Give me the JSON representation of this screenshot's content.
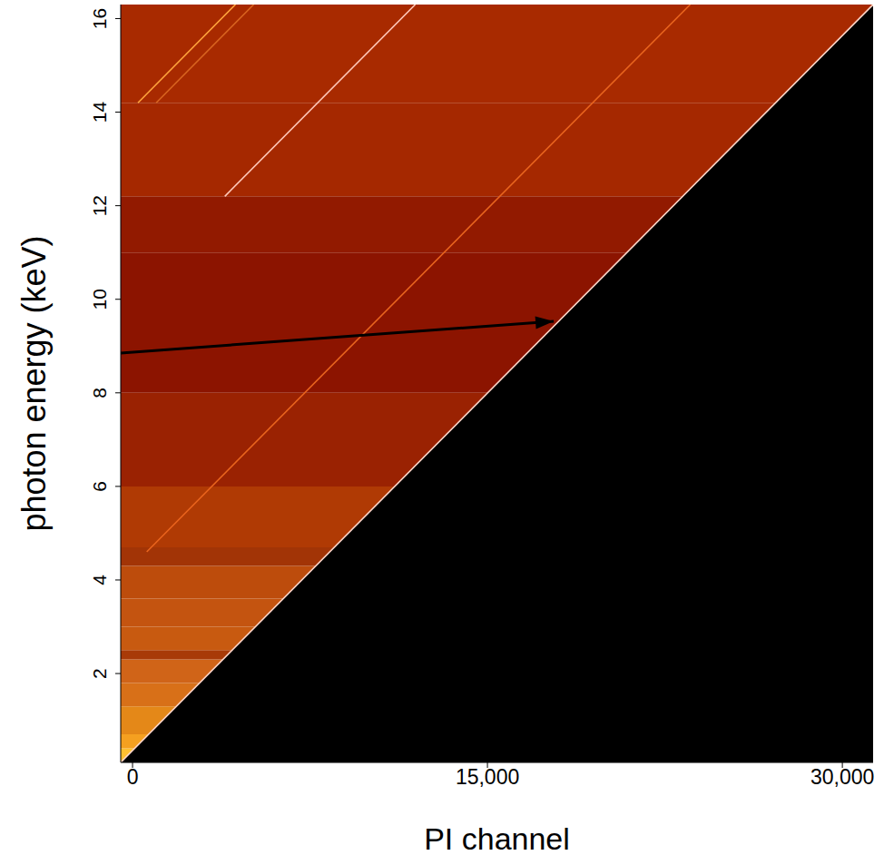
{
  "chart_data": {
    "type": "heatmap",
    "x_label": "PI channel",
    "y_label": "photon energy (keV)",
    "xlim": [
      -500,
      31300
    ],
    "ylim": [
      0.1,
      16.3
    ],
    "xticks": [
      0,
      {
        "value": 15000,
        "label": "15,000"
      },
      {
        "value": 30000,
        "label": "30,000"
      }
    ],
    "yticks": [
      2,
      4,
      6,
      8,
      10,
      12,
      14,
      16
    ],
    "bands": [
      {
        "y": [
          0.1,
          0.4
        ],
        "color": "#ffc030"
      },
      {
        "y": [
          0.4,
          0.7
        ],
        "color": "#f5a020"
      },
      {
        "y": [
          0.7,
          1.3
        ],
        "color": "#e48818"
      },
      {
        "y": [
          1.3,
          1.8
        ],
        "color": "#d87018"
      },
      {
        "y": [
          1.8,
          2.3
        ],
        "color": "#d06418"
      },
      {
        "y": [
          2.3,
          2.5
        ],
        "color": "#a83a08"
      },
      {
        "y": [
          2.5,
          3.0
        ],
        "color": "#c85a10"
      },
      {
        "y": [
          3.0,
          3.6
        ],
        "color": "#c45410"
      },
      {
        "y": [
          3.6,
          4.3
        ],
        "color": "#bd4c0c"
      },
      {
        "y": [
          4.3,
          4.7
        ],
        "color": "#a23406"
      },
      {
        "y": [
          4.7,
          6.0
        ],
        "color": "#b03a04"
      },
      {
        "y": [
          6.0,
          8.0
        ],
        "color": "#9a2202"
      },
      {
        "y": [
          8.0,
          11.0
        ],
        "color": "#8c1400"
      },
      {
        "y": [
          11.0,
          12.2
        ],
        "color": "#921a00"
      },
      {
        "y": [
          12.2,
          14.2
        ],
        "color": "#a52800"
      },
      {
        "y": [
          14.2,
          16.3
        ],
        "color": "#a82a00"
      }
    ],
    "lines": [
      {
        "x": [
          -500,
          31300
        ],
        "y": [
          0.1,
          16.3
        ],
        "color": "#ffd6c8",
        "fill": "#000000"
      },
      {
        "x": [
          600,
          23570
        ],
        "y": [
          4.6,
          16.3
        ],
        "color": "#e8641e"
      },
      {
        "x": [
          3900,
          11950
        ],
        "y": [
          12.2,
          16.3
        ],
        "color": "#ffc8b8"
      },
      {
        "x": [
          230,
          4350
        ],
        "y": [
          14.2,
          16.3
        ],
        "color": "#ffa43c"
      },
      {
        "x": [
          1000,
          5120
        ],
        "y": [
          14.2,
          16.3
        ],
        "color": "#d86420"
      }
    ],
    "annotations": [
      {
        "type": "arrow",
        "x": [
          -500,
          17800
        ],
        "y": [
          8.85,
          9.53
        ]
      }
    ]
  }
}
